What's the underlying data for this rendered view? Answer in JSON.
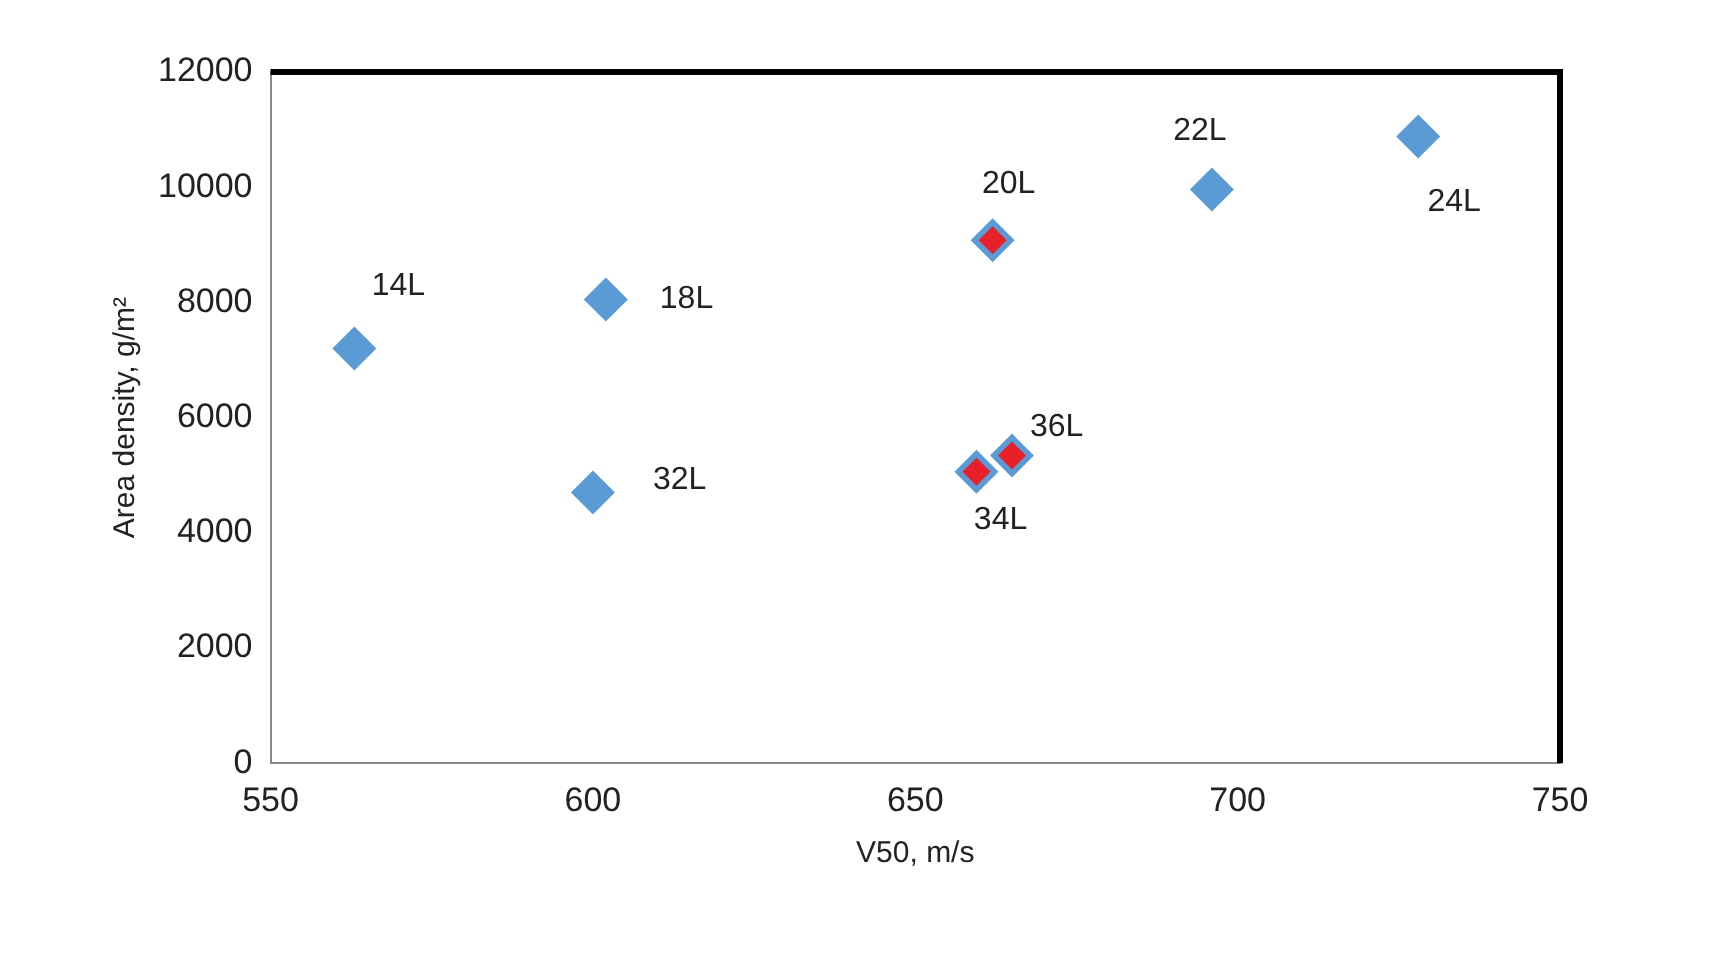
{
  "chart_data": {
    "type": "scatter",
    "xlabel": "V50, m/s",
    "ylabel": "Area density, g/m²",
    "xlim": [
      550,
      750
    ],
    "xticks": [
      550,
      600,
      650,
      700,
      750
    ],
    "ylim": [
      0,
      12000
    ],
    "yticks": [
      0,
      2000,
      4000,
      6000,
      8000,
      10000,
      12000
    ],
    "grid": false,
    "legend": false,
    "marker": "diamond",
    "series": [
      {
        "color": "#5b9bd5",
        "x": [
          563,
          602,
          600,
          662,
          696,
          728,
          659.5,
          665
        ],
        "values": [
          7200,
          8050,
          4700,
          9080,
          9960,
          10880,
          5060,
          5340
        ]
      },
      {
        "color": "#e8202a",
        "x": [
          662,
          659.5,
          665
        ],
        "values": [
          9080,
          5060,
          5340
        ]
      }
    ],
    "annotations": [
      {
        "text": "14L",
        "x": 563,
        "y": 7200
      },
      {
        "text": "18L",
        "x": 602,
        "y": 8050
      },
      {
        "text": "32L",
        "x": 600,
        "y": 4700
      },
      {
        "text": "20L",
        "x": 662,
        "y": 9080
      },
      {
        "text": "22L",
        "x": 696,
        "y": 9960
      },
      {
        "text": "24L",
        "x": 728,
        "y": 10880
      },
      {
        "text": "34L",
        "x": 659.5,
        "y": 5060
      },
      {
        "text": "36L",
        "x": 665,
        "y": 5340
      }
    ]
  }
}
